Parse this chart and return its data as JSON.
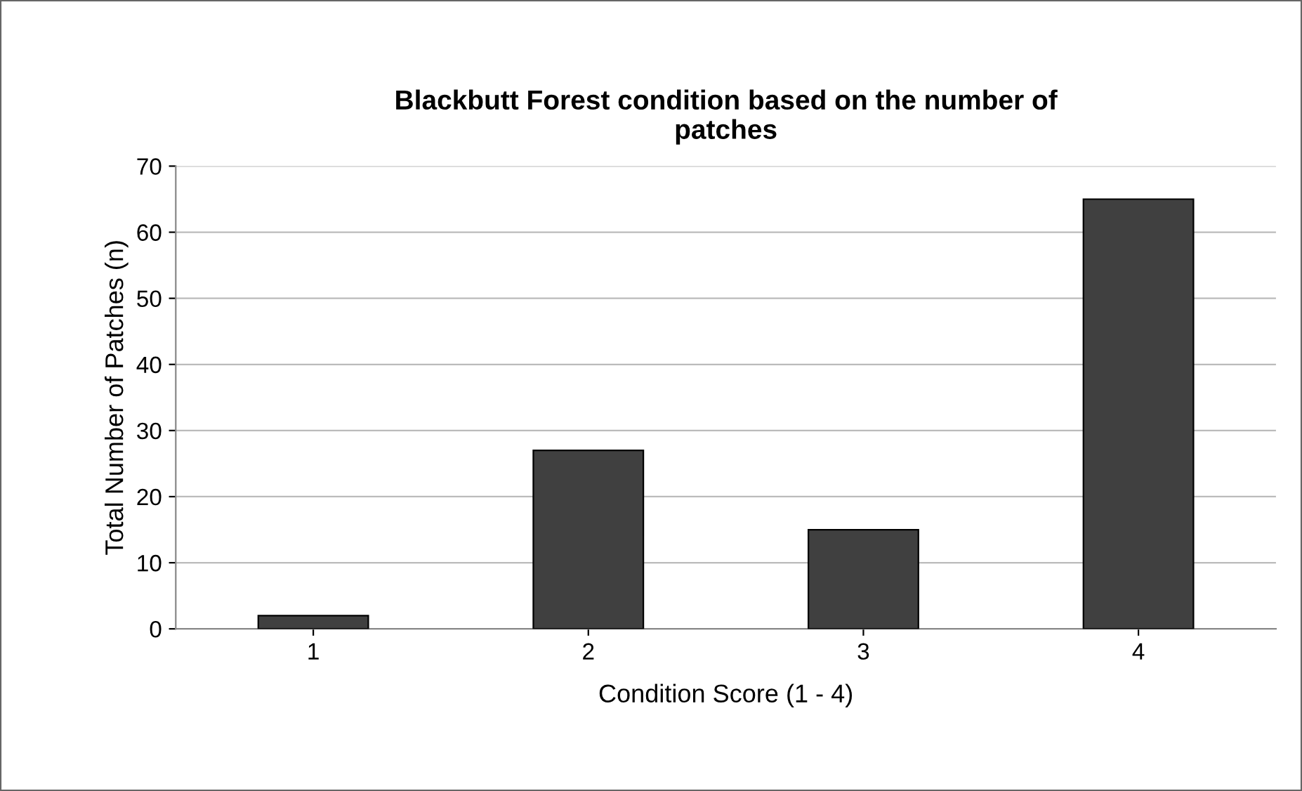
{
  "chart_data": {
    "type": "bar",
    "title": "Blackbutt Forest condition based on the number of\npatches",
    "xlabel": "Condition Score (1 - 4)",
    "ylabel": "Total Number of Patches (n)",
    "categories": [
      "1",
      "2",
      "3",
      "4"
    ],
    "values": [
      2,
      27,
      15,
      65
    ],
    "color": "#404040",
    "ylim": [
      0,
      70
    ],
    "yticks": [
      0,
      10,
      20,
      30,
      40,
      50,
      60,
      70
    ],
    "grid": "y",
    "legend": false
  }
}
